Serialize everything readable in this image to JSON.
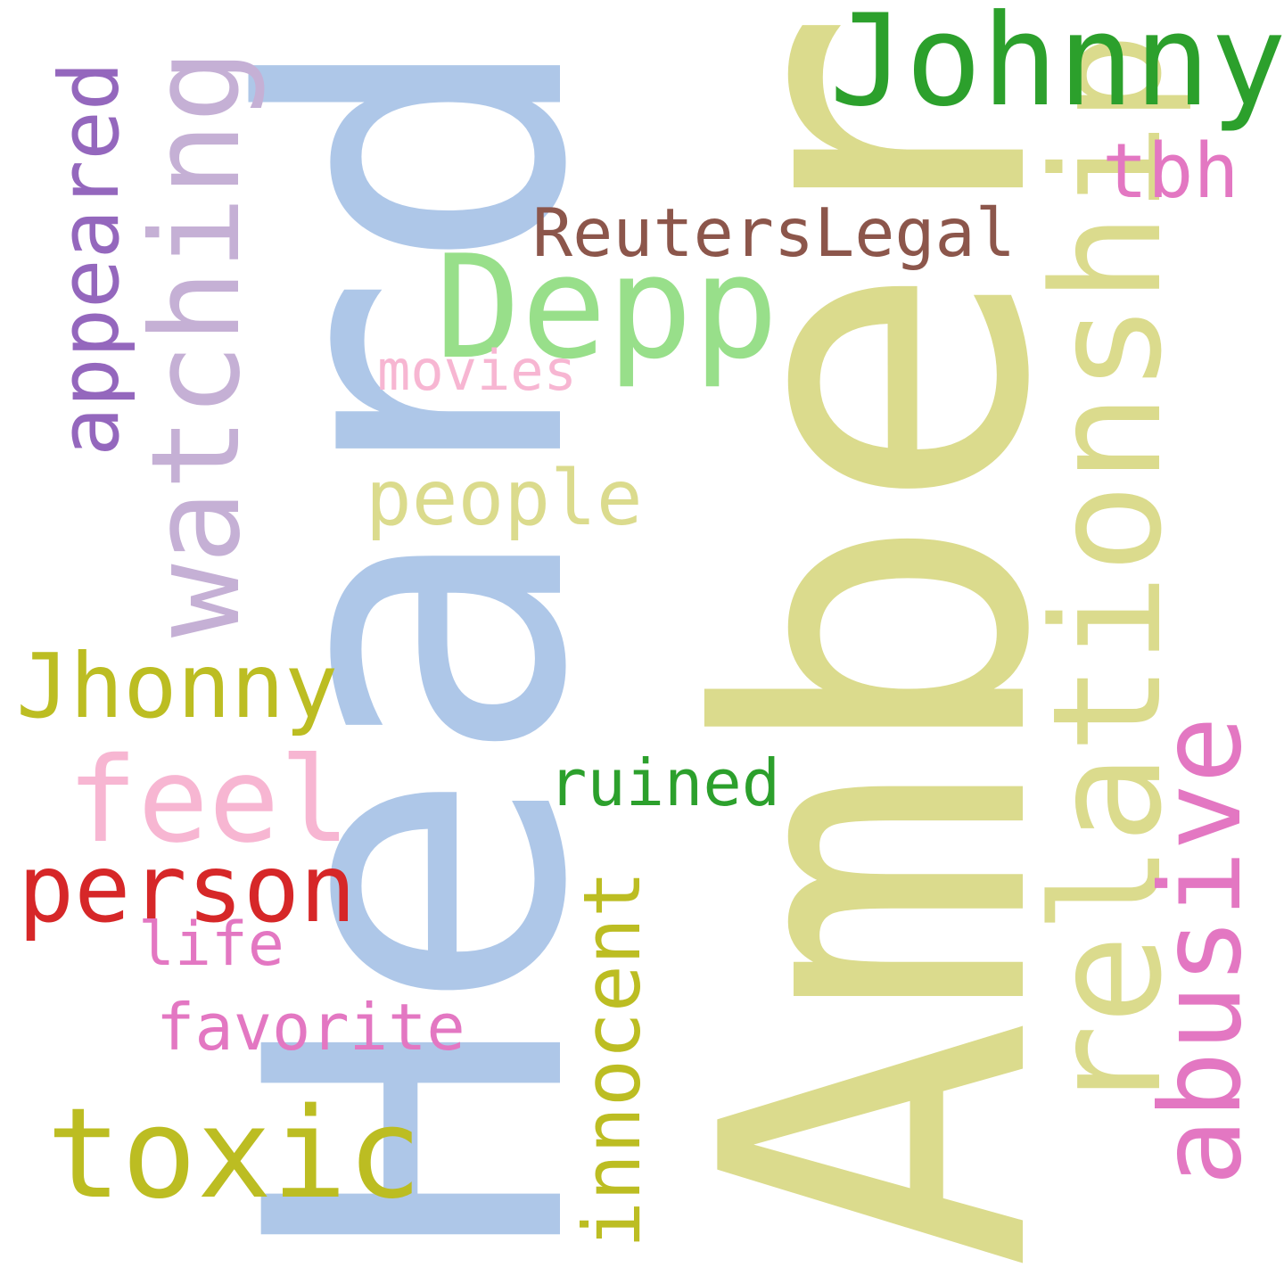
{
  "words": {
    "amber": {
      "text": "Amber",
      "color": "#dbdb8d"
    },
    "heard": {
      "text": "Heard",
      "color": "#aec7e8"
    },
    "johnny": {
      "text": "Johnny",
      "color": "#2ca02c"
    },
    "depp": {
      "text": "Depp",
      "color": "#98df8a"
    },
    "relationship": {
      "text": "relationship",
      "color": "#dbdb8d"
    },
    "abusive": {
      "text": "abusive",
      "color": "#e377c2"
    },
    "watching": {
      "text": "watching",
      "color": "#c5b0d5"
    },
    "appeared": {
      "text": "appeared",
      "color": "#9467bd"
    },
    "toxic": {
      "text": "toxic",
      "color": "#bcbd22"
    },
    "jhonny": {
      "text": "Jhonny",
      "color": "#bcbd22"
    },
    "feel": {
      "text": "feel",
      "color": "#f7b6d2"
    },
    "person": {
      "text": "person",
      "color": "#d62728"
    },
    "innocent": {
      "text": "innocent",
      "color": "#bcbd22"
    },
    "people": {
      "text": "people",
      "color": "#dbdb8d"
    },
    "tbh": {
      "text": "tbh",
      "color": "#e377c2"
    },
    "reuterslegal": {
      "text": "ReutersLegal",
      "color": "#8c564b"
    },
    "ruined": {
      "text": "ruined",
      "color": "#2ca02c"
    },
    "movies": {
      "text": "movies",
      "color": "#f7b6d2"
    },
    "favorite": {
      "text": "favorite",
      "color": "#e377c2"
    },
    "life": {
      "text": "life",
      "color": "#e377c2"
    }
  }
}
